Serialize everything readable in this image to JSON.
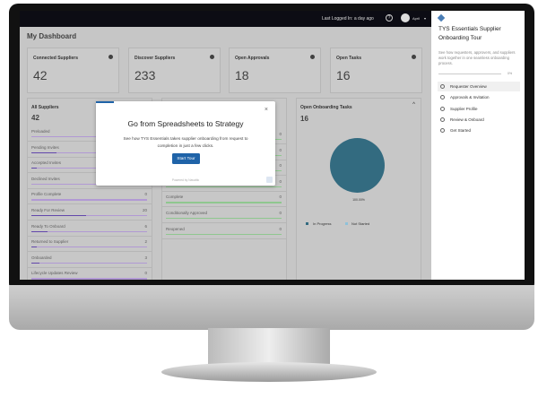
{
  "topbar": {
    "last_logged": "Last Logged In: a day ago",
    "user": "April"
  },
  "dashboard": {
    "title": "My Dashboard",
    "cards": [
      {
        "label": "Connected Suppliers",
        "value": "42"
      },
      {
        "label": "Discover Suppliers",
        "value": "233"
      },
      {
        "label": "Open Approvals",
        "value": "18"
      },
      {
        "label": "Open Tasks",
        "value": "16"
      }
    ],
    "all_suppliers": {
      "title": "All Suppliers",
      "count": "42",
      "rows": [
        {
          "label": "Preloaded",
          "value": "",
          "fill": 0
        },
        {
          "label": "Pending Invites",
          "value": "",
          "fill": 0.22
        },
        {
          "label": "Accepted Invites",
          "value": "",
          "fill": 0.05
        },
        {
          "label": "Declined Invites",
          "value": "",
          "fill": 0
        },
        {
          "label": "Profile Complete",
          "value": "0",
          "fill": 0
        },
        {
          "label": "Ready For Review",
          "value": "20",
          "fill": 0.47
        },
        {
          "label": "Ready To Onboard",
          "value": "6",
          "fill": 0.14
        },
        {
          "label": "Returned to Supplier",
          "value": "2",
          "fill": 0.05
        },
        {
          "label": "Onboarded",
          "value": "3",
          "fill": 0.07
        },
        {
          "label": "Lifecycle Updates Review",
          "value": "0",
          "fill": 0
        }
      ]
    },
    "approvals": {
      "rows": [
        {
          "label": "",
          "value": "0"
        },
        {
          "label": "",
          "value": "0"
        },
        {
          "label": "",
          "value": "0"
        },
        {
          "label": "",
          "value": "0"
        },
        {
          "label": "Complete",
          "value": "0"
        },
        {
          "label": "Conditionally Approved",
          "value": "0"
        },
        {
          "label": "Reopened",
          "value": "0"
        }
      ]
    },
    "onboarding": {
      "title": "Open Onboarding Tasks",
      "count": "16",
      "pie_label": "100.00%",
      "legend": [
        {
          "label": "In Progress",
          "color": "#23647d"
        },
        {
          "label": "Not Started",
          "color": "#8ec9e6"
        }
      ]
    }
  },
  "modal": {
    "title": "Go from Spreadsheets to Strategy",
    "body": "See how TYS Essentials takes supplier onboarding from request to completion in just a few clicks.",
    "button": "Start Tour",
    "footer": "Powered by Navattic",
    "close": "×"
  },
  "tour": {
    "title": "TYS Essentials Supplier Onboarding Tour",
    "desc": "See how requesters, approvers, and suppliers work together in one seamless onboarding process.",
    "progress": "0%",
    "steps": [
      "Requester Overview",
      "Approvals & Invitation",
      "Supplier Profile",
      "Review & Onboard",
      "Get Started"
    ]
  },
  "colors": {
    "accent": "#1f63a8",
    "pie": "#23647d"
  }
}
